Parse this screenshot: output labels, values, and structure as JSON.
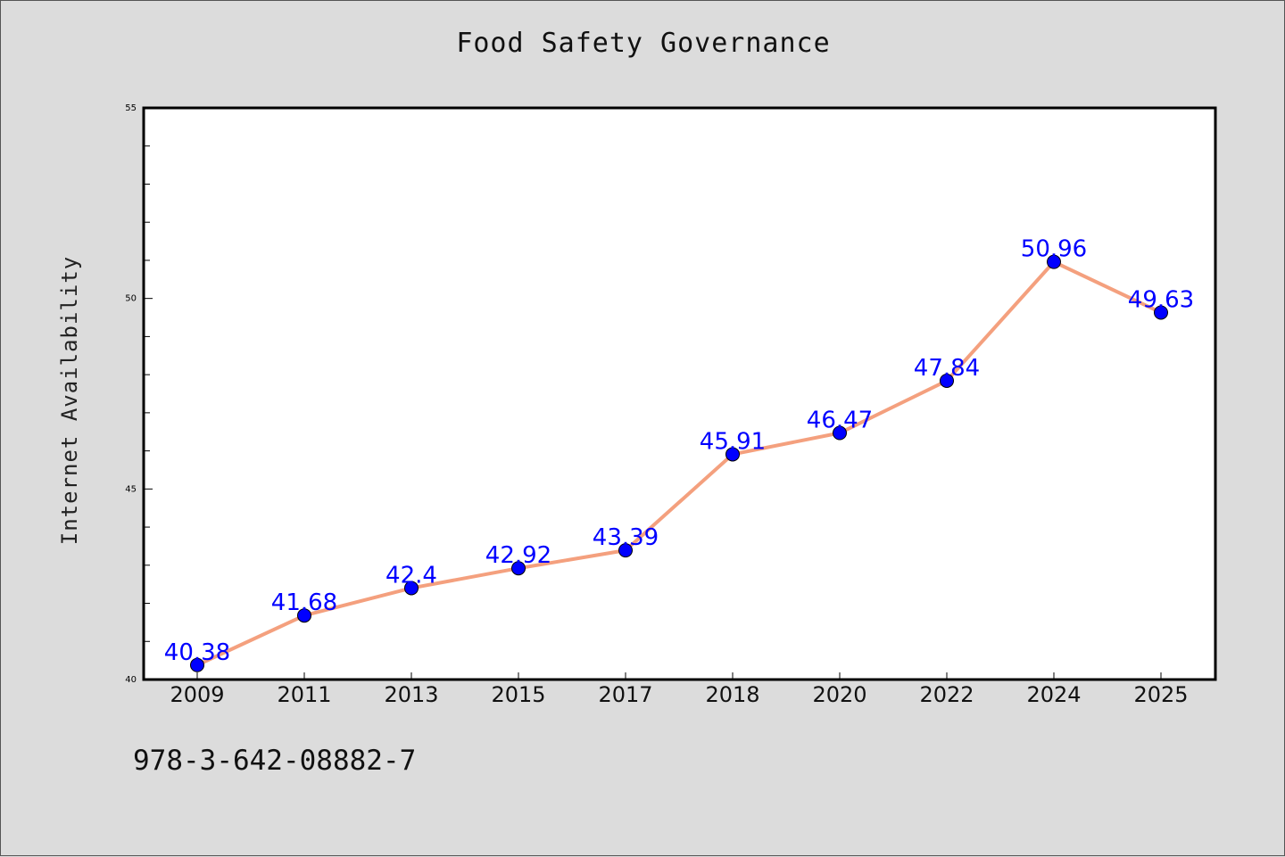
{
  "chart_data": {
    "type": "line",
    "title": "Food Safety Governance",
    "xlabel": "",
    "ylabel": "Internet Availability",
    "categories": [
      "2009",
      "2011",
      "2013",
      "2015",
      "2017",
      "2018",
      "2020",
      "2022",
      "2024",
      "2025"
    ],
    "series": [
      {
        "values": [
          40.38,
          41.68,
          42.4,
          42.92,
          43.39,
          45.91,
          46.47,
          47.84,
          50.96,
          49.63
        ]
      }
    ],
    "data_labels": [
      "40.38",
      "41.68",
      "42.4",
      "42.92",
      "43.39",
      "45.91",
      "46.47",
      "47.84",
      "50.96",
      "49.63"
    ],
    "ylim": [
      40,
      55
    ],
    "yticks": [
      40,
      45,
      50,
      55
    ],
    "grid": false,
    "legend": "none",
    "colors": {
      "line": "#f4a07e",
      "marker": "#0000ff",
      "label": "#0000ff",
      "background": "#dcdcdc",
      "plot_bg": "#ffffff"
    }
  },
  "footer": {
    "code": "978-3-642-08882-7"
  }
}
